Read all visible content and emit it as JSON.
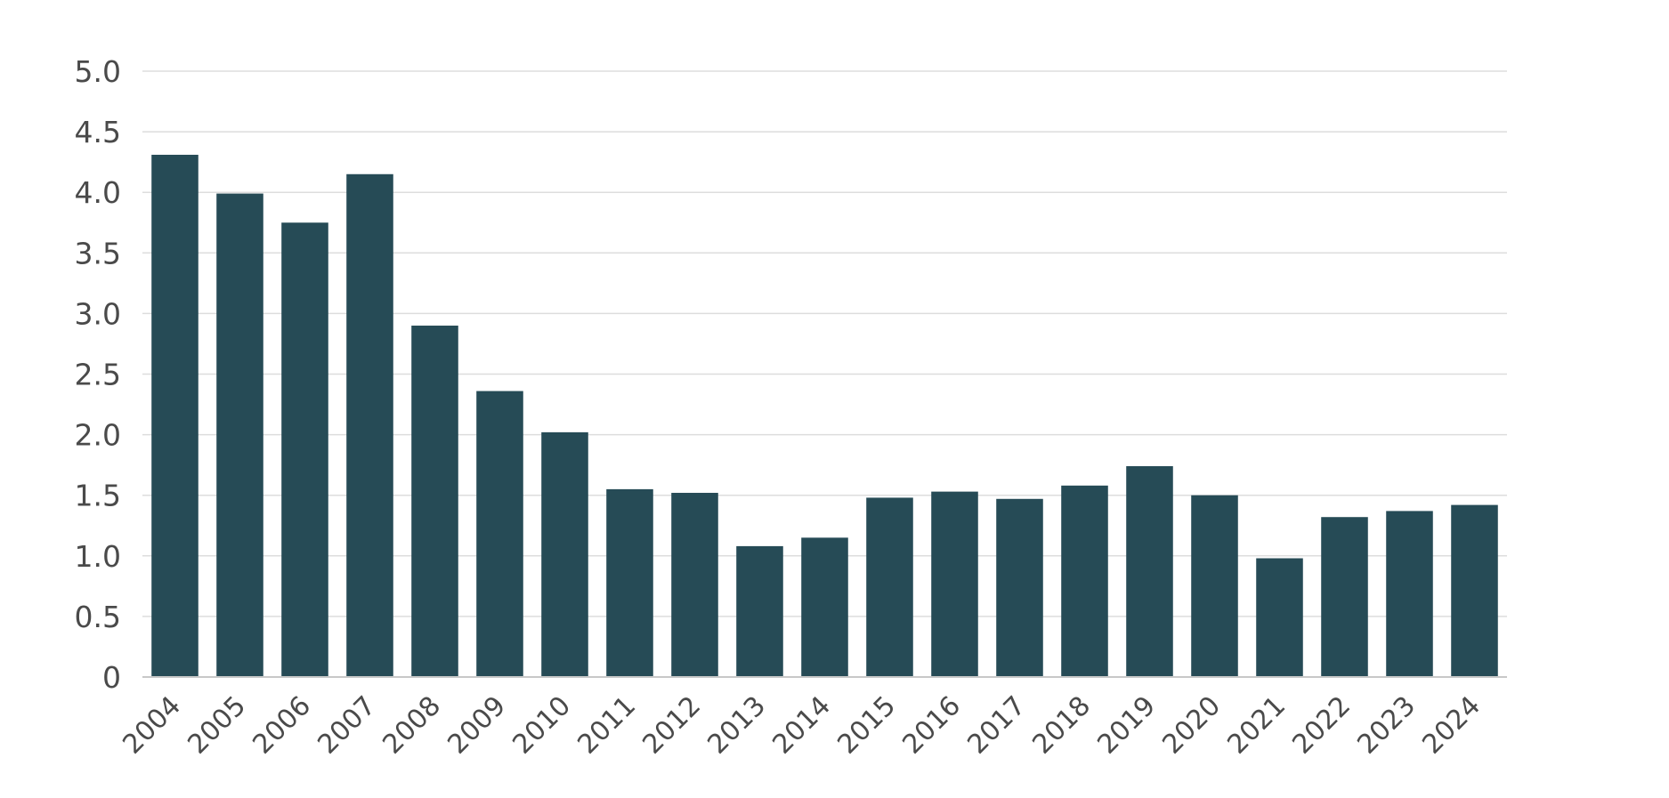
{
  "chart_data": {
    "type": "bar",
    "title": "",
    "xlabel": "",
    "ylabel": "",
    "categories": [
      "2004",
      "2005",
      "2006",
      "2007",
      "2008",
      "2009",
      "2010",
      "2011",
      "2012",
      "2013",
      "2014",
      "2015",
      "2016",
      "2017",
      "2018",
      "2019",
      "2020",
      "2021",
      "2022",
      "2023",
      "2024"
    ],
    "values": [
      4.31,
      3.99,
      3.75,
      4.15,
      2.9,
      2.36,
      2.02,
      1.55,
      1.52,
      1.08,
      1.15,
      1.48,
      1.53,
      1.47,
      1.58,
      1.74,
      1.5,
      0.98,
      1.32,
      1.37,
      1.42
    ],
    "ylim": [
      0,
      5.0
    ],
    "yticks": [
      0,
      0.5,
      1.0,
      1.5,
      2.0,
      2.5,
      3.0,
      3.5,
      4.0,
      4.5,
      5.0
    ],
    "ytick_labels": [
      "0",
      "0.5",
      "1.0",
      "1.5",
      "2.0",
      "2.5",
      "3.0",
      "3.5",
      "4.0",
      "4.5",
      "5.0"
    ],
    "grid": true,
    "legend": "none",
    "colors": {
      "bar": "#264b56",
      "grid": "#dddddd",
      "axis": "#c8c8c8",
      "text": "#4a4a4a"
    }
  }
}
